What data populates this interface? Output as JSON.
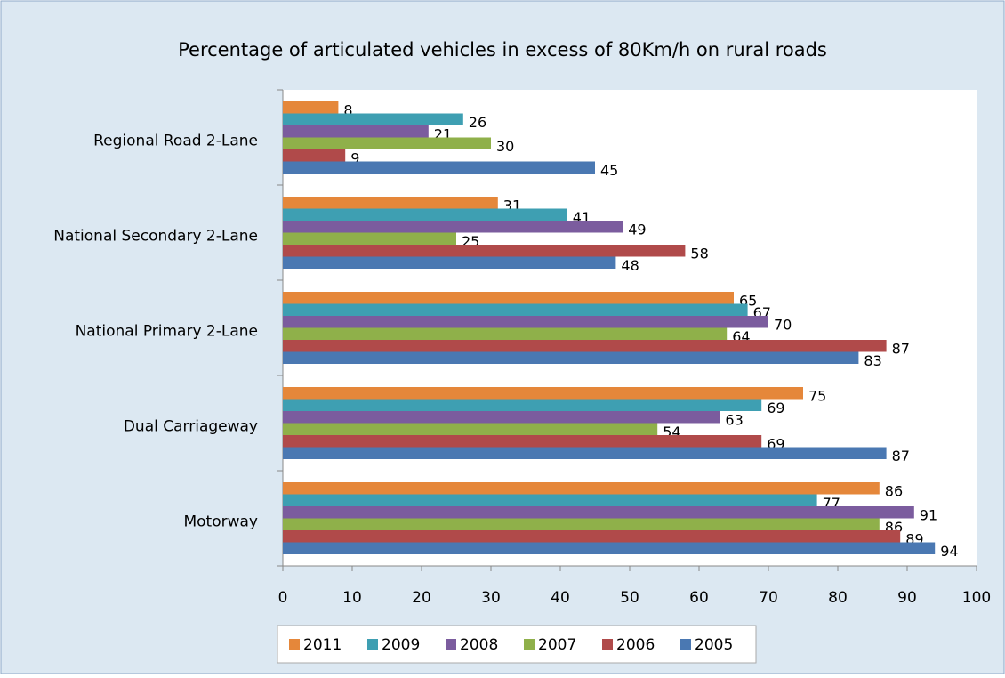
{
  "chart_data": {
    "type": "bar",
    "orientation": "horizontal",
    "title": "Percentage of articulated vehicles in excess of 80Km/h on rural roads",
    "categories": [
      "Regional Road 2-Lane",
      "National Secondary 2-Lane",
      "National Primary 2-Lane",
      "Dual Carriageway",
      "Motorway"
    ],
    "series": [
      {
        "name": "2011",
        "color": "#e5873a",
        "values": [
          8,
          31,
          65,
          75,
          86
        ]
      },
      {
        "name": "2009",
        "color": "#3e9fb2",
        "values": [
          26,
          41,
          67,
          69,
          77
        ]
      },
      {
        "name": "2008",
        "color": "#7b5c9e",
        "values": [
          21,
          49,
          70,
          63,
          91
        ]
      },
      {
        "name": "2007",
        "color": "#8fb04a",
        "values": [
          30,
          25,
          64,
          54,
          86
        ]
      },
      {
        "name": "2006",
        "color": "#b04a4a",
        "values": [
          9,
          58,
          87,
          69,
          89
        ]
      },
      {
        "name": "2005",
        "color": "#4a78b2",
        "values": [
          45,
          48,
          83,
          87,
          94
        ]
      }
    ],
    "xlim": [
      0,
      100
    ],
    "xticks": [
      0,
      10,
      20,
      30,
      40,
      50,
      60,
      70,
      80,
      90,
      100
    ],
    "legend": "bottom"
  }
}
